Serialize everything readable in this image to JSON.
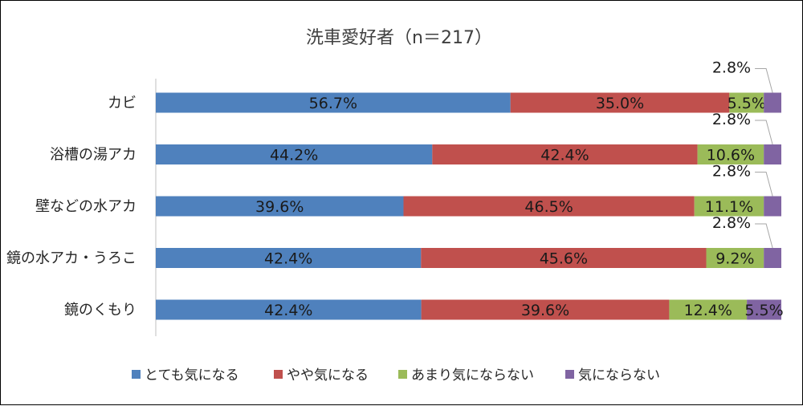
{
  "chart_data": {
    "type": "bar",
    "orientation": "horizontal",
    "stacked": "percent",
    "title": "洗車愛好者（n＝217）",
    "categories": [
      "カビ",
      "浴槽の湯アカ",
      "壁などの水アカ",
      "鏡の水アカ・うろこ",
      "鏡のくもり"
    ],
    "series": [
      {
        "name": "とても気になる",
        "color": "#4f81bd",
        "values": [
          56.7,
          44.2,
          39.6,
          42.4,
          42.4
        ],
        "labels": [
          "56.7%",
          "44.2%",
          "39.6%",
          "42.4%",
          "42.4%"
        ]
      },
      {
        "name": "やや気になる",
        "color": "#c0504d",
        "values": [
          35.0,
          42.4,
          46.5,
          45.6,
          39.6
        ],
        "labels": [
          "35.0%",
          "42.4%",
          "46.5%",
          "45.6%",
          "39.6%"
        ]
      },
      {
        "name": "あまり気にならない",
        "color": "#9bbb59",
        "values": [
          5.5,
          10.6,
          11.1,
          9.2,
          12.4
        ],
        "labels": [
          "5.5%",
          "10.6%",
          "11.1%",
          "9.2%",
          "12.4%"
        ]
      },
      {
        "name": "気にならない",
        "color": "#8064a2",
        "values": [
          2.8,
          2.8,
          2.8,
          2.8,
          5.5
        ],
        "labels": [
          "2.8%",
          "2.8%",
          "2.8%",
          "2.8%",
          "5.5%"
        ]
      }
    ],
    "xlim": [
      0,
      100
    ],
    "legend": "bottom"
  }
}
